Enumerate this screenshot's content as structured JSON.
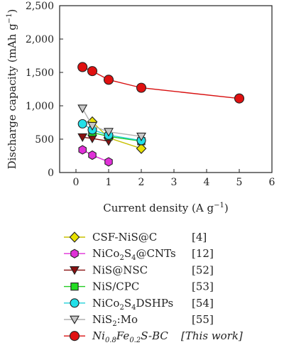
{
  "chart_data": {
    "type": "line",
    "xlabel_main": "Current density (A g",
    "xlabel_sup": "−1",
    "xlabel_end": ")",
    "ylabel_main": "Discharge capacity (mAh g",
    "ylabel_sup": "−1",
    "ylabel_end": ")",
    "xlim": [
      -0.5,
      6
    ],
    "ylim": [
      0,
      2500
    ],
    "x_ticks": [
      0,
      1,
      2,
      3,
      4,
      5,
      6
    ],
    "y_ticks": [
      0,
      500,
      1000,
      1500,
      2000,
      2500
    ],
    "y_tick_labels": [
      "0",
      "500",
      "1,000",
      "1,500",
      "2,000",
      "2,500"
    ],
    "grid": false,
    "legend_position": "below",
    "series": [
      {
        "name": "CSF-NiS@C",
        "name_parts": [
          [
            "CSF-NiS@C",
            ""
          ]
        ],
        "ref": "[4]",
        "marker": "diamond",
        "color": "#e8e000",
        "line_color": "#c8c000",
        "x": [
          0.5,
          1,
          2
        ],
        "y": [
          760,
          520,
          360
        ]
      },
      {
        "name": "NiCo2S4@CNTs",
        "name_parts": [
          [
            "NiCo",
            ""
          ],
          [
            "2",
            "sub"
          ],
          [
            "S",
            ""
          ],
          [
            "4",
            "sub"
          ],
          [
            "@CNTs",
            ""
          ]
        ],
        "ref": "[12]",
        "marker": "hexagon",
        "color": "#e030d8",
        "line_color": "#e030d8",
        "x": [
          0.2,
          0.5,
          1
        ],
        "y": [
          340,
          260,
          160
        ]
      },
      {
        "name": "NiS@NSC",
        "name_parts": [
          [
            "NiS@NSC",
            ""
          ]
        ],
        "ref": "[52]",
        "marker": "triangle-down",
        "color": "#8a1010",
        "line_color": "#8a1010",
        "x": [
          0.2,
          0.5,
          1
        ],
        "y": [
          530,
          510,
          470
        ]
      },
      {
        "name": "NiS/CPC",
        "name_parts": [
          [
            "NiS/CPC",
            ""
          ]
        ],
        "ref": "[53]",
        "marker": "square",
        "color": "#22dd22",
        "line_color": "#22cc22",
        "x": [
          0.5,
          1,
          2
        ],
        "y": [
          600,
          540,
          470
        ]
      },
      {
        "name": "NiCo2S4DSHPs",
        "name_parts": [
          [
            "NiCo",
            ""
          ],
          [
            "2",
            "sub"
          ],
          [
            "S",
            ""
          ],
          [
            "4",
            "sub"
          ],
          [
            "DSHPs",
            ""
          ]
        ],
        "ref": "[54]",
        "marker": "circle",
        "color": "#22e0e8",
        "line_color": "#22d0d8",
        "x": [
          0.2,
          0.5,
          1,
          2
        ],
        "y": [
          730,
          640,
          560,
          480
        ]
      },
      {
        "name": "NiS2:Mo",
        "name_parts": [
          [
            "NiS",
            ""
          ],
          [
            "2",
            "sub"
          ],
          [
            ":Mo",
            ""
          ]
        ],
        "ref": "[55]",
        "marker": "triangle-down",
        "color": "#c8c8c8",
        "line_color": "#b0b0b0",
        "x": [
          0.2,
          0.5,
          1,
          2
        ],
        "y": [
          960,
          700,
          610,
          540
        ]
      },
      {
        "name": "Ni0.8Fe0.2S-BC",
        "name_parts": [
          [
            "Ni",
            ""
          ],
          [
            "0.8",
            "sub"
          ],
          [
            "Fe",
            ""
          ],
          [
            "0.2",
            "sub"
          ],
          [
            "S-BC",
            ""
          ]
        ],
        "ref": "[This work]",
        "italic": true,
        "marker": "circle",
        "color": "#e01010",
        "line_color": "#d81010",
        "x": [
          0.2,
          0.5,
          1,
          2,
          5
        ],
        "y": [
          1580,
          1520,
          1390,
          1270,
          1110
        ]
      }
    ]
  }
}
